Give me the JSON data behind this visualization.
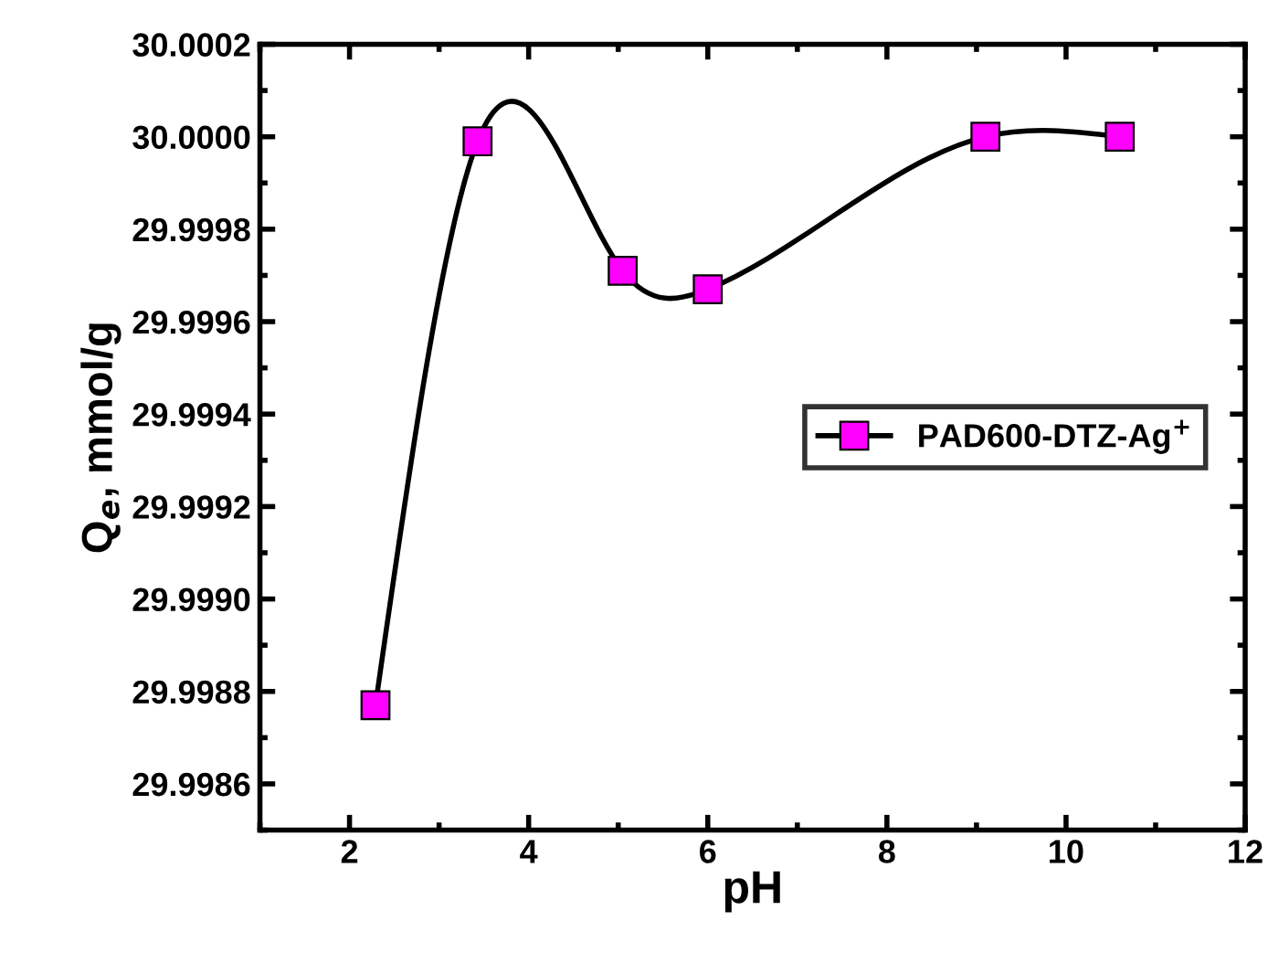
{
  "chart_data": {
    "type": "line",
    "xlabel": "pH",
    "ylabel": "Q$_{e}$, mmol/g",
    "xlim": [
      1,
      12
    ],
    "xticks": [
      2,
      4,
      6,
      8,
      10,
      12
    ],
    "ylim": [
      29.9985,
      30.0002
    ],
    "yticks": [
      29.9986,
      29.9988,
      {
        "value": 29.999,
        "label": "29.9990"
      },
      29.9992,
      29.9994,
      29.9996,
      29.9998,
      {
        "value": 30.0,
        "label": "30.0000"
      },
      30.0002
    ],
    "x": [
      2.29,
      3.43,
      5.05,
      6.0,
      9.1,
      10.6
    ],
    "series": [
      {
        "name": "PAD600-DTZ-Ag$^{+}$",
        "color": "#ff00ff",
        "values": [
          29.99877,
          29.99999,
          29.99971,
          29.99967,
          30.0,
          30.0
        ]
      }
    ],
    "marker": "square",
    "line_style": "solid",
    "legend": "center right",
    "grid": false
  }
}
